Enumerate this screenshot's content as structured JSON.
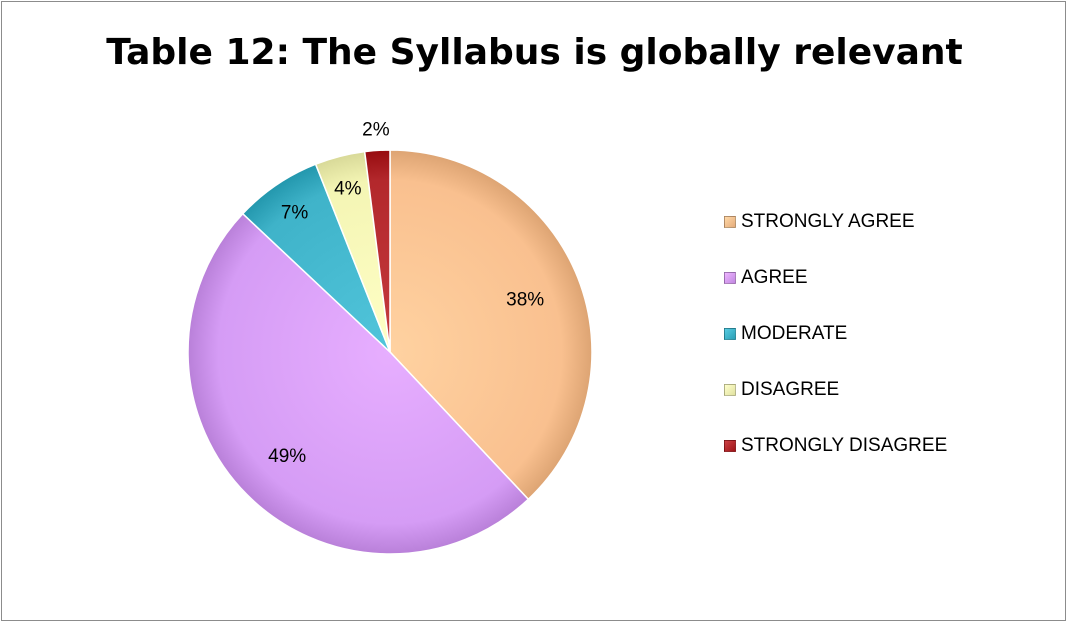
{
  "chart_data": {
    "type": "pie",
    "title": "Table 12: The Syllabus is globally relevant",
    "categories": [
      "STRONGLY AGREE",
      "AGREE",
      "MODERATE",
      "DISAGREE",
      "STRONGLY DISAGREE"
    ],
    "values": [
      38,
      49,
      7,
      4,
      2
    ],
    "data_labels": [
      "38%",
      "49%",
      "7%",
      "4%",
      "2%"
    ],
    "colors": [
      "#f9c08f",
      "#d59cf5",
      "#3fb3c9",
      "#f4f5b4",
      "#b3282c"
    ],
    "legend_position": "right"
  }
}
